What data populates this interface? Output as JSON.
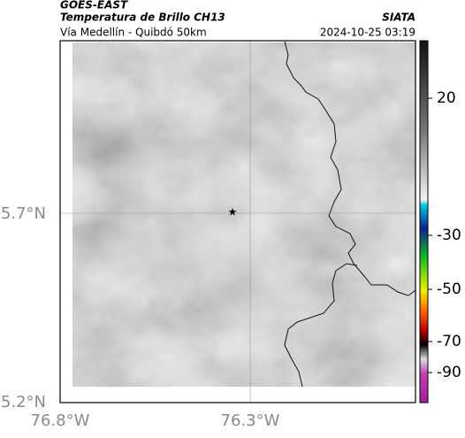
{
  "header": {
    "source": "GOES-EAST",
    "title": "Temperatura de Brillo CH13",
    "subtitle": "Vía Medellín - Quibdó 50km",
    "credit": "SIATA",
    "timestamp": "2024-10-25 03:19"
  },
  "map": {
    "lat_labels": [
      "5.7°N",
      "5.2°N"
    ],
    "lon_labels": [
      "76.8°W",
      "76.3°W"
    ]
  },
  "colorbar": {
    "ticks": [
      20,
      -30,
      -50,
      -70,
      -90
    ]
  }
}
